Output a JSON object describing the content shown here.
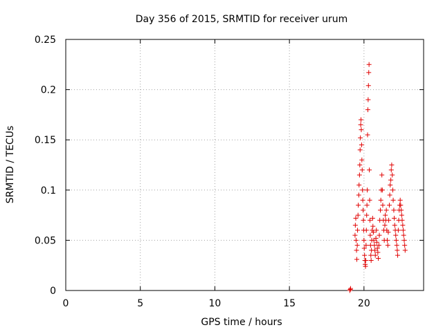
{
  "chart_data": {
    "type": "scatter",
    "title": "Day 356 of 2015, SRMTID for receiver urum",
    "xlabel": "GPS time / hours",
    "ylabel": "SRMTID / TECUs",
    "xlim": [
      0,
      24
    ],
    "ylim": [
      0,
      0.25
    ],
    "xticks": [
      0,
      5,
      10,
      15,
      20
    ],
    "xtick_labels": [
      "0",
      "5",
      "10",
      "15",
      "20"
    ],
    "yticks": [
      0,
      0.05,
      0.1,
      0.15,
      0.2,
      0.25
    ],
    "ytick_labels": [
      "0",
      "0.05",
      "0.1",
      "0.15",
      "0.2",
      "0.25"
    ],
    "grid": true,
    "marker": "+",
    "marker_color": "#e00000",
    "series": [
      {
        "name": "urum",
        "points": [
          [
            19.05,
            0.0
          ],
          [
            19.08,
            0.001
          ],
          [
            19.1,
            0.002
          ],
          [
            19.4,
            0.055
          ],
          [
            19.42,
            0.065
          ],
          [
            19.45,
            0.072
          ],
          [
            19.47,
            0.05
          ],
          [
            19.5,
            0.04
          ],
          [
            19.52,
            0.031
          ],
          [
            19.55,
            0.045
          ],
          [
            19.57,
            0.06
          ],
          [
            19.6,
            0.075
          ],
          [
            19.62,
            0.085
          ],
          [
            19.65,
            0.095
          ],
          [
            19.67,
            0.105
          ],
          [
            19.7,
            0.115
          ],
          [
            19.72,
            0.125
          ],
          [
            19.74,
            0.14
          ],
          [
            19.76,
            0.152
          ],
          [
            19.78,
            0.165
          ],
          [
            19.8,
            0.17
          ],
          [
            19.82,
            0.16
          ],
          [
            19.84,
            0.145
          ],
          [
            19.86,
            0.13
          ],
          [
            19.88,
            0.12
          ],
          [
            19.9,
            0.1
          ],
          [
            19.92,
            0.09
          ],
          [
            19.94,
            0.08
          ],
          [
            19.96,
            0.07
          ],
          [
            19.98,
            0.06
          ],
          [
            20.0,
            0.05
          ],
          [
            20.02,
            0.042
          ],
          [
            20.04,
            0.035
          ],
          [
            20.06,
            0.03
          ],
          [
            20.08,
            0.026
          ],
          [
            20.1,
            0.024
          ],
          [
            20.12,
            0.03
          ],
          [
            20.14,
            0.045
          ],
          [
            20.16,
            0.06
          ],
          [
            20.18,
            0.075
          ],
          [
            20.2,
            0.085
          ],
          [
            20.22,
            0.1
          ],
          [
            20.24,
            0.155
          ],
          [
            20.26,
            0.18
          ],
          [
            20.28,
            0.19
          ],
          [
            20.3,
            0.204
          ],
          [
            20.32,
            0.217
          ],
          [
            20.34,
            0.225
          ],
          [
            20.36,
            0.12
          ],
          [
            20.38,
            0.09
          ],
          [
            20.4,
            0.07
          ],
          [
            20.42,
            0.055
          ],
          [
            20.44,
            0.045
          ],
          [
            20.46,
            0.035
          ],
          [
            20.48,
            0.03
          ],
          [
            20.5,
            0.04
          ],
          [
            20.52,
            0.05
          ],
          [
            20.55,
            0.06
          ],
          [
            20.58,
            0.072
          ],
          [
            20.6,
            0.064
          ],
          [
            20.63,
            0.058
          ],
          [
            20.66,
            0.05
          ],
          [
            20.7,
            0.045
          ],
          [
            20.73,
            0.04
          ],
          [
            20.76,
            0.035
          ],
          [
            20.8,
            0.052
          ],
          [
            20.83,
            0.06
          ],
          [
            20.86,
            0.048
          ],
          [
            20.9,
            0.042
          ],
          [
            20.93,
            0.038
          ],
          [
            20.96,
            0.032
          ],
          [
            21.0,
            0.045
          ],
          [
            21.03,
            0.055
          ],
          [
            21.06,
            0.07
          ],
          [
            21.1,
            0.08
          ],
          [
            21.13,
            0.09
          ],
          [
            21.16,
            0.1
          ],
          [
            21.2,
            0.115
          ],
          [
            21.23,
            0.1
          ],
          [
            21.26,
            0.085
          ],
          [
            21.3,
            0.07
          ],
          [
            21.33,
            0.06
          ],
          [
            21.36,
            0.05
          ],
          [
            21.4,
            0.065
          ],
          [
            21.43,
            0.075
          ],
          [
            21.46,
            0.07
          ],
          [
            21.5,
            0.08
          ],
          [
            21.53,
            0.06
          ],
          [
            21.56,
            0.05
          ],
          [
            21.6,
            0.045
          ],
          [
            21.63,
            0.058
          ],
          [
            21.66,
            0.07
          ],
          [
            21.7,
            0.085
          ],
          [
            21.73,
            0.095
          ],
          [
            21.76,
            0.105
          ],
          [
            21.8,
            0.11
          ],
          [
            21.83,
            0.12
          ],
          [
            21.86,
            0.125
          ],
          [
            21.9,
            0.115
          ],
          [
            21.93,
            0.1
          ],
          [
            21.96,
            0.09
          ],
          [
            22.0,
            0.08
          ],
          [
            22.03,
            0.072
          ],
          [
            22.06,
            0.065
          ],
          [
            22.1,
            0.06
          ],
          [
            22.13,
            0.055
          ],
          [
            22.16,
            0.05
          ],
          [
            22.2,
            0.045
          ],
          [
            22.23,
            0.04
          ],
          [
            22.26,
            0.035
          ],
          [
            22.3,
            0.06
          ],
          [
            22.33,
            0.07
          ],
          [
            22.36,
            0.08
          ],
          [
            22.4,
            0.085
          ],
          [
            22.43,
            0.09
          ],
          [
            22.46,
            0.085
          ],
          [
            22.5,
            0.08
          ],
          [
            22.53,
            0.075
          ],
          [
            22.56,
            0.07
          ],
          [
            22.6,
            0.065
          ],
          [
            22.63,
            0.06
          ],
          [
            22.66,
            0.055
          ],
          [
            22.7,
            0.05
          ],
          [
            22.73,
            0.045
          ],
          [
            22.76,
            0.04
          ]
        ]
      }
    ]
  }
}
